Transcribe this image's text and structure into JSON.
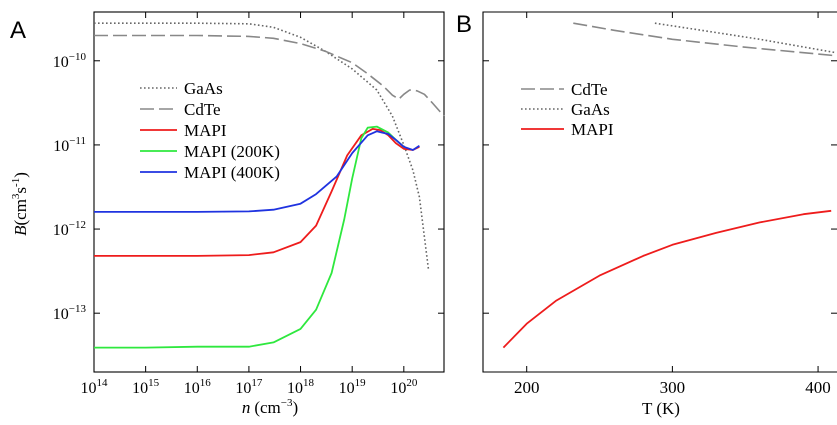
{
  "chart_data": [
    {
      "panel_label": "A",
      "type": "line",
      "xscale": "log",
      "yscale": "log",
      "xlim": [
        100000000000000.0,
        6e+20
      ],
      "ylim": [
        2e-14,
        3.8e-10
      ],
      "xlabel_main": "n",
      "xlabel_unit": "(cm",
      "xlabel_exp": "−3",
      "xlabel_close": ")",
      "ylabel_main": "B",
      "ylabel_unit": "(cm",
      "ylabel_exp1": "3",
      "ylabel_mid": "s",
      "ylabel_exp2": "-1",
      "ylabel_close": ")",
      "xticks": [
        {
          "value": 100000000000000.0,
          "base": "10",
          "exp": "14"
        },
        {
          "value": 1000000000000000.0,
          "base": "10",
          "exp": "15"
        },
        {
          "value": 1e+16,
          "base": "10",
          "exp": "16"
        },
        {
          "value": 1e+17,
          "base": "10",
          "exp": "17"
        },
        {
          "value": 1e+18,
          "base": "10",
          "exp": "18"
        },
        {
          "value": 1e+19,
          "base": "10",
          "exp": "19"
        },
        {
          "value": 1e+20,
          "base": "10",
          "exp": "20"
        }
      ],
      "yticks": [
        {
          "value": 1e-10,
          "base": "10",
          "exp": "−10"
        },
        {
          "value": 1e-11,
          "base": "10",
          "exp": "−11"
        },
        {
          "value": 1e-12,
          "base": "10",
          "exp": "−12"
        },
        {
          "value": 1e-13,
          "base": "10",
          "exp": "−13"
        }
      ],
      "legend_position": "upper-left",
      "series": [
        {
          "name": "GaAs",
          "style": "dotted",
          "color": "#666666",
          "x": [
            100000000000000.0,
            1e+16,
            1e+17,
            3e+17,
            1e+18,
            3e+18,
            1e+19,
            3e+19,
            6e+19,
            1e+20,
            1.5e+20,
            2e+20,
            3e+20
          ],
          "y": [
            2.8e-10,
            2.8e-10,
            2.75e-10,
            2.5e-10,
            1.9e-10,
            1.3e-10,
            8e-11,
            4.5e-11,
            2.2e-11,
            1e-11,
            5e-12,
            2.4e-12,
            3.3e-13
          ]
        },
        {
          "name": "CdTe",
          "style": "dashed",
          "color": "#888888",
          "x": [
            100000000000000.0,
            1e+16,
            1e+17,
            3e+17,
            1e+18,
            3e+18,
            1e+19,
            2e+19,
            4e+19,
            6e+19,
            8e+19,
            1e+20,
            1.3e+20,
            1.8e+20,
            2.5e+20,
            3.5e+20,
            6e+20
          ],
          "y": [
            2e-10,
            2e-10,
            1.95e-10,
            1.85e-10,
            1.6e-10,
            1.3e-10,
            9.5e-11,
            7e-11,
            5e-11,
            3.9e-11,
            3.5e-11,
            4e-11,
            4.5e-11,
            4.4e-11,
            4e-11,
            3.2e-11,
            2.2e-11
          ]
        },
        {
          "name": "MAPI",
          "style": "solid",
          "color": "#ee1c1c",
          "x": [
            100000000000000.0,
            1e+16,
            1e+17,
            3e+17,
            1e+18,
            2e+18,
            4e+18,
            8e+18,
            1.5e+19,
            2.5e+19,
            3.5e+19,
            5e+19,
            7e+19,
            1e+20,
            1.5e+20,
            2e+20
          ],
          "y": [
            4.8e-13,
            4.8e-13,
            4.9e-13,
            5.3e-13,
            7e-13,
            1.1e-12,
            2.8e-12,
            7.5e-12,
            1.3e-11,
            1.55e-11,
            1.5e-11,
            1.3e-11,
            1.05e-11,
            9e-12,
            8.7e-12,
            9.5e-12
          ]
        },
        {
          "name": "MAPI (200K)",
          "style": "solid",
          "color": "#2ee83e",
          "x": [
            100000000000000.0,
            1000000000000000.0,
            1e+16,
            1e+17,
            3e+17,
            1e+18,
            2e+18,
            4e+18,
            7e+18,
            1e+19,
            1.5e+19,
            2e+19,
            3e+19,
            5e+19,
            7e+19,
            1e+20
          ],
          "y": [
            3.9e-14,
            3.9e-14,
            4e-14,
            4e-14,
            4.5e-14,
            6.5e-14,
            1.1e-13,
            3e-13,
            1.3e-12,
            4e-12,
            1.2e-11,
            1.6e-11,
            1.65e-11,
            1.4e-11,
            1.15e-11,
            9.5e-12
          ]
        },
        {
          "name": "MAPI (400K)",
          "style": "solid",
          "color": "#1f33e0",
          "x": [
            100000000000000.0,
            1e+16,
            1e+17,
            3e+17,
            1e+18,
            2e+18,
            5e+18,
            1e+19,
            2e+19,
            3e+19,
            5e+19,
            7e+19,
            1e+20,
            1.5e+20,
            2e+20
          ],
          "y": [
            1.6e-12,
            1.6e-12,
            1.62e-12,
            1.7e-12,
            2e-12,
            2.6e-12,
            4.2e-12,
            8e-12,
            1.3e-11,
            1.45e-11,
            1.35e-11,
            1.15e-11,
            9.5e-12,
            8.7e-12,
            9.8e-12
          ]
        }
      ]
    },
    {
      "panel_label": "B",
      "type": "line",
      "xscale": "linear",
      "yscale": "log",
      "xlim": [
        170,
        413
      ],
      "ylim": [
        2e-14,
        3.8e-10
      ],
      "xlabel": "T (K)",
      "xticks": [
        200,
        300,
        400
      ],
      "legend_position": "upper-left",
      "series": [
        {
          "name": "CdTe",
          "style": "dashed",
          "color": "#888888",
          "x": [
            232,
            260,
            300,
            350,
            412
          ],
          "y": [
            2.8e-10,
            2.3e-10,
            1.8e-10,
            1.45e-10,
            1.15e-10
          ]
        },
        {
          "name": "GaAs",
          "style": "dotted",
          "color": "#666666",
          "x": [
            288,
            320,
            360,
            412
          ],
          "y": [
            2.8e-10,
            2.3e-10,
            1.8e-10,
            1.25e-10
          ]
        },
        {
          "name": "MAPI",
          "style": "solid",
          "color": "#ee1c1c",
          "x": [
            184,
            200,
            220,
            250,
            280,
            300,
            330,
            360,
            390,
            409
          ],
          "y": [
            3.9e-14,
            7.5e-14,
            1.4e-13,
            2.8e-13,
            4.8e-13,
            6.5e-13,
            9e-13,
            1.2e-12,
            1.5e-12,
            1.65e-12
          ]
        }
      ]
    }
  ]
}
